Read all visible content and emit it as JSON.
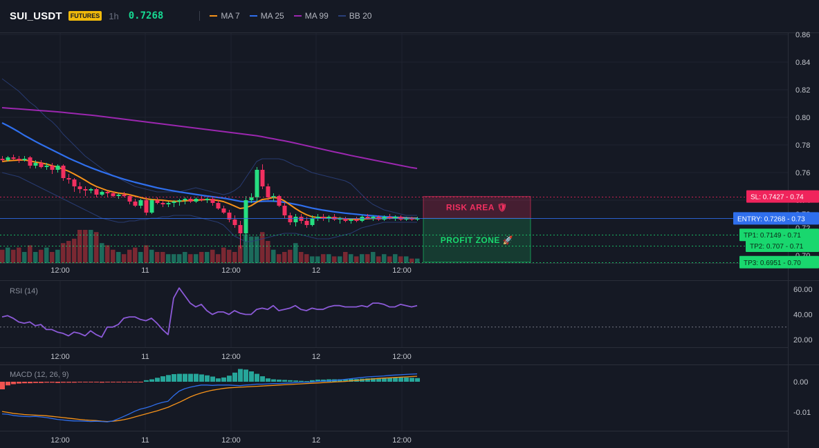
{
  "header": {
    "symbol": "SUI_USDT",
    "badge": "FUTURES",
    "timeframe": "1h",
    "price": "0.7268",
    "legend": [
      {
        "label": "MA 7",
        "color": "#f7931a"
      },
      {
        "label": "MA 25",
        "color": "#2f6fed"
      },
      {
        "label": "MA 99",
        "color": "#9c27b0"
      },
      {
        "label": "BB 20",
        "color": "#2a3f7a"
      }
    ]
  },
  "colors": {
    "up": "#26de81",
    "down": "#f23060",
    "vol_up": "#1c6b5c",
    "vol_down": "#7a2832",
    "ma7": "#f7931a",
    "ma25": "#2f6fed",
    "ma99": "#9c27b0",
    "bb": "#2a3f7a",
    "sl": "#f0245c",
    "entry": "#2f6fed",
    "tp": "#19d76e",
    "rsi": "#8c5ad8",
    "macd_line": "#2f6fed",
    "signal_line": "#f7931a",
    "hist_up": "#26a69a",
    "hist_down": "#ef5350"
  },
  "price_axis": {
    "ticks": [
      "0.86",
      "0.84",
      "0.82",
      "0.80",
      "0.78",
      "0.76",
      "0.74",
      "0.73",
      "0.72",
      "0.71",
      "0.70"
    ],
    "ylim": [
      0.693,
      0.864
    ]
  },
  "time_axis": [
    "12:00",
    "11",
    "12:00",
    "12",
    "12:00"
  ],
  "levels": {
    "sl": {
      "label": "SL: 0.7427",
      "value": 0.7427,
      "tick": "0.74"
    },
    "entry": {
      "label": "ENTRY: 0.7268",
      "value": 0.7268,
      "tick": "0.73"
    },
    "tp1": {
      "label": "TP1: 0.7149",
      "value": 0.7149,
      "tick": "0.71"
    },
    "tp2": {
      "label": "TP2: 0.707",
      "value": 0.707,
      "tick": "0.71"
    },
    "tp3": {
      "label": "TP3: 0.6951",
      "value": 0.6951,
      "tick": "0.70"
    }
  },
  "zones": {
    "risk": "RISK AREA 🛡",
    "profit": "PROFIT ZONE 🚀"
  },
  "rsi": {
    "title": "RSI (14)",
    "ticks": [
      "60.00",
      "40.00",
      "20.00"
    ],
    "values": [
      38,
      39,
      37,
      34,
      33,
      34,
      31,
      32,
      28,
      28,
      26,
      25,
      23,
      26,
      25,
      23,
      27,
      24,
      22,
      30,
      30,
      32,
      37,
      38,
      38,
      36,
      35,
      37,
      33,
      28,
      24,
      53,
      61,
      55,
      49,
      46,
      48,
      43,
      40,
      42,
      42,
      40,
      43,
      41,
      40,
      40,
      44,
      45,
      44,
      47,
      43,
      44,
      45,
      47,
      44,
      43,
      45,
      44,
      44,
      46,
      47,
      47,
      46,
      46,
      46,
      47,
      46,
      49,
      49,
      48,
      46,
      46,
      48,
      47,
      46,
      47
    ]
  },
  "macd": {
    "title": "MACD (12, 26, 9)",
    "ticks": [
      "0.00",
      "-0.01"
    ],
    "hist": [
      -0.0025,
      -0.0012,
      -0.0008,
      -0.0006,
      -0.0005,
      -0.0005,
      -0.0004,
      -0.0004,
      -0.0003,
      -0.0003,
      -0.0004,
      -0.0003,
      -0.0003,
      -0.0003,
      -0.0002,
      -0.0002,
      -0.0002,
      -0.0002,
      -0.0003,
      -0.0002,
      -0.0002,
      -0.0001,
      -0.0001,
      -0.0002,
      -0.0002,
      -0.0002,
      0.0005,
      0.0008,
      0.0013,
      0.0018,
      0.0022,
      0.0025,
      0.0026,
      0.0026,
      0.0026,
      0.0026,
      0.0024,
      0.0021,
      0.0017,
      0.0011,
      0.0014,
      0.002,
      0.003,
      0.0042,
      0.004,
      0.0034,
      0.0026,
      0.0018,
      0.0011,
      0.0008,
      0.0007,
      0.0006,
      0.0005,
      0.0004,
      0.0003,
      0.0002,
      0.0005,
      0.0007,
      0.0007,
      0.0008,
      0.0008,
      0.0008,
      0.0008,
      0.0009,
      0.0009,
      0.001,
      0.0011,
      0.0012,
      0.0012,
      0.0012,
      0.0013,
      0.0014,
      0.0014,
      0.0014,
      0.0013,
      0.0012
    ],
    "macd_line": [
      -0.0106,
      -0.0107,
      -0.0111,
      -0.0113,
      -0.0114,
      -0.0115,
      -0.0114,
      -0.0116,
      -0.0118,
      -0.0121,
      -0.0124,
      -0.0126,
      -0.0128,
      -0.0129,
      -0.0129,
      -0.013,
      -0.0131,
      -0.013,
      -0.0131,
      -0.0132,
      -0.0129,
      -0.0122,
      -0.0114,
      -0.0106,
      -0.0097,
      -0.009,
      -0.0086,
      -0.008,
      -0.0073,
      -0.0068,
      -0.0064,
      -0.0046,
      -0.0031,
      -0.0023,
      -0.0018,
      -0.0014,
      -0.0011,
      -0.0011,
      -0.0012,
      -0.0011,
      -0.0011,
      -0.0011,
      -0.0012,
      -0.0013,
      -0.0011,
      -0.001,
      -0.0008,
      -0.0008,
      -0.0007,
      -0.0006,
      -0.0006,
      -0.0005,
      -0.0004,
      -0.0003,
      -0.0002,
      -0.0002,
      -0.0001,
      0.0001,
      0.0002,
      0.0003,
      0.0004,
      0.0006,
      0.0008,
      0.001,
      0.0012,
      0.0014,
      0.0016,
      0.0017,
      0.0018,
      0.0019,
      0.0021,
      0.0022,
      0.0023,
      0.0024,
      0.0025,
      0.0026
    ],
    "signal_line": [
      -0.0098,
      -0.0101,
      -0.0104,
      -0.0106,
      -0.0108,
      -0.0109,
      -0.011,
      -0.0111,
      -0.0112,
      -0.0114,
      -0.0116,
      -0.0118,
      -0.012,
      -0.0122,
      -0.0124,
      -0.0126,
      -0.0127,
      -0.0128,
      -0.013,
      -0.0131,
      -0.013,
      -0.0128,
      -0.0125,
      -0.0121,
      -0.0116,
      -0.0111,
      -0.0106,
      -0.0101,
      -0.0096,
      -0.009,
      -0.0084,
      -0.0076,
      -0.0068,
      -0.0059,
      -0.005,
      -0.0043,
      -0.0037,
      -0.0032,
      -0.0028,
      -0.0025,
      -0.0022,
      -0.002,
      -0.0019,
      -0.0018,
      -0.0017,
      -0.0016,
      -0.0015,
      -0.0014,
      -0.0013,
      -0.0012,
      -0.0011,
      -0.001,
      -0.0009,
      -0.0008,
      -0.0007,
      -0.0006,
      -0.0005,
      -0.0004,
      -0.0003,
      -0.0002,
      -0.0001,
      0.0,
      0.0001,
      0.0003,
      0.0004,
      0.0006,
      0.0008,
      0.0009,
      0.0011,
      0.0012,
      0.0013,
      0.0014,
      0.0015,
      0.0016,
      0.0017,
      0.0018
    ]
  },
  "chart_data": {
    "type": "candlestick",
    "title": "SUI_USDT",
    "candles": [
      {
        "o": 0.77,
        "h": 0.772,
        "l": 0.768,
        "c": 0.769
      },
      {
        "o": 0.769,
        "h": 0.772,
        "l": 0.768,
        "c": 0.771
      },
      {
        "o": 0.771,
        "h": 0.773,
        "l": 0.769,
        "c": 0.77
      },
      {
        "o": 0.77,
        "h": 0.772,
        "l": 0.767,
        "c": 0.769
      },
      {
        "o": 0.769,
        "h": 0.772,
        "l": 0.768,
        "c": 0.77
      },
      {
        "o": 0.771,
        "h": 0.772,
        "l": 0.763,
        "c": 0.765
      },
      {
        "o": 0.765,
        "h": 0.769,
        "l": 0.763,
        "c": 0.767
      },
      {
        "o": 0.767,
        "h": 0.769,
        "l": 0.763,
        "c": 0.764
      },
      {
        "o": 0.764,
        "h": 0.767,
        "l": 0.762,
        "c": 0.765
      },
      {
        "o": 0.765,
        "h": 0.767,
        "l": 0.759,
        "c": 0.762
      },
      {
        "o": 0.762,
        "h": 0.766,
        "l": 0.76,
        "c": 0.765
      },
      {
        "o": 0.765,
        "h": 0.766,
        "l": 0.754,
        "c": 0.756
      },
      {
        "o": 0.756,
        "h": 0.759,
        "l": 0.752,
        "c": 0.755
      },
      {
        "o": 0.755,
        "h": 0.756,
        "l": 0.746,
        "c": 0.75
      },
      {
        "o": 0.75,
        "h": 0.753,
        "l": 0.745,
        "c": 0.748
      },
      {
        "o": 0.748,
        "h": 0.75,
        "l": 0.743,
        "c": 0.747
      },
      {
        "o": 0.747,
        "h": 0.749,
        "l": 0.745,
        "c": 0.748
      },
      {
        "o": 0.748,
        "h": 0.749,
        "l": 0.742,
        "c": 0.744
      },
      {
        "o": 0.744,
        "h": 0.747,
        "l": 0.743,
        "c": 0.746
      },
      {
        "o": 0.746,
        "h": 0.747,
        "l": 0.742,
        "c": 0.745
      },
      {
        "o": 0.745,
        "h": 0.746,
        "l": 0.742,
        "c": 0.743
      },
      {
        "o": 0.743,
        "h": 0.745,
        "l": 0.741,
        "c": 0.744
      },
      {
        "o": 0.744,
        "h": 0.746,
        "l": 0.742,
        "c": 0.743
      },
      {
        "o": 0.743,
        "h": 0.744,
        "l": 0.737,
        "c": 0.739
      },
      {
        "o": 0.739,
        "h": 0.741,
        "l": 0.735,
        "c": 0.736
      },
      {
        "o": 0.736,
        "h": 0.741,
        "l": 0.734,
        "c": 0.74
      },
      {
        "o": 0.74,
        "h": 0.742,
        "l": 0.729,
        "c": 0.731
      },
      {
        "o": 0.731,
        "h": 0.741,
        "l": 0.73,
        "c": 0.74
      },
      {
        "o": 0.74,
        "h": 0.742,
        "l": 0.737,
        "c": 0.738
      },
      {
        "o": 0.738,
        "h": 0.74,
        "l": 0.735,
        "c": 0.737
      },
      {
        "o": 0.737,
        "h": 0.739,
        "l": 0.735,
        "c": 0.738
      },
      {
        "o": 0.738,
        "h": 0.74,
        "l": 0.735,
        "c": 0.739
      },
      {
        "o": 0.739,
        "h": 0.741,
        "l": 0.736,
        "c": 0.74
      },
      {
        "o": 0.74,
        "h": 0.742,
        "l": 0.737,
        "c": 0.741
      },
      {
        "o": 0.741,
        "h": 0.742,
        "l": 0.738,
        "c": 0.739
      },
      {
        "o": 0.739,
        "h": 0.742,
        "l": 0.738,
        "c": 0.741
      },
      {
        "o": 0.741,
        "h": 0.743,
        "l": 0.739,
        "c": 0.74
      },
      {
        "o": 0.74,
        "h": 0.742,
        "l": 0.738,
        "c": 0.741
      },
      {
        "o": 0.741,
        "h": 0.742,
        "l": 0.736,
        "c": 0.738
      },
      {
        "o": 0.738,
        "h": 0.74,
        "l": 0.733,
        "c": 0.734
      },
      {
        "o": 0.734,
        "h": 0.736,
        "l": 0.73,
        "c": 0.731
      },
      {
        "o": 0.731,
        "h": 0.733,
        "l": 0.724,
        "c": 0.726
      },
      {
        "o": 0.726,
        "h": 0.729,
        "l": 0.72,
        "c": 0.722
      },
      {
        "o": 0.722,
        "h": 0.725,
        "l": 0.705,
        "c": 0.716
      },
      {
        "o": 0.716,
        "h": 0.743,
        "l": 0.71,
        "c": 0.74
      },
      {
        "o": 0.74,
        "h": 0.745,
        "l": 0.738,
        "c": 0.742
      },
      {
        "o": 0.742,
        "h": 0.764,
        "l": 0.739,
        "c": 0.762
      },
      {
        "o": 0.762,
        "h": 0.766,
        "l": 0.748,
        "c": 0.75
      },
      {
        "o": 0.75,
        "h": 0.752,
        "l": 0.74,
        "c": 0.742
      },
      {
        "o": 0.742,
        "h": 0.745,
        "l": 0.739,
        "c": 0.743
      },
      {
        "o": 0.743,
        "h": 0.744,
        "l": 0.735,
        "c": 0.736
      },
      {
        "o": 0.736,
        "h": 0.738,
        "l": 0.727,
        "c": 0.729
      },
      {
        "o": 0.729,
        "h": 0.731,
        "l": 0.722,
        "c": 0.724
      },
      {
        "o": 0.724,
        "h": 0.73,
        "l": 0.721,
        "c": 0.728
      },
      {
        "o": 0.728,
        "h": 0.73,
        "l": 0.723,
        "c": 0.725
      },
      {
        "o": 0.725,
        "h": 0.728,
        "l": 0.72,
        "c": 0.722
      },
      {
        "o": 0.722,
        "h": 0.729,
        "l": 0.721,
        "c": 0.727
      },
      {
        "o": 0.727,
        "h": 0.73,
        "l": 0.725,
        "c": 0.728
      },
      {
        "o": 0.728,
        "h": 0.73,
        "l": 0.725,
        "c": 0.727
      },
      {
        "o": 0.727,
        "h": 0.729,
        "l": 0.724,
        "c": 0.728
      },
      {
        "o": 0.728,
        "h": 0.73,
        "l": 0.725,
        "c": 0.726
      },
      {
        "o": 0.726,
        "h": 0.728,
        "l": 0.723,
        "c": 0.727
      },
      {
        "o": 0.727,
        "h": 0.728,
        "l": 0.724,
        "c": 0.725
      },
      {
        "o": 0.725,
        "h": 0.727,
        "l": 0.723,
        "c": 0.726
      },
      {
        "o": 0.726,
        "h": 0.728,
        "l": 0.724,
        "c": 0.725
      },
      {
        "o": 0.725,
        "h": 0.729,
        "l": 0.724,
        "c": 0.728
      },
      {
        "o": 0.728,
        "h": 0.73,
        "l": 0.726,
        "c": 0.727
      },
      {
        "o": 0.727,
        "h": 0.729,
        "l": 0.725,
        "c": 0.728
      },
      {
        "o": 0.728,
        "h": 0.729,
        "l": 0.725,
        "c": 0.726
      },
      {
        "o": 0.726,
        "h": 0.729,
        "l": 0.725,
        "c": 0.728
      },
      {
        "o": 0.728,
        "h": 0.73,
        "l": 0.726,
        "c": 0.727
      },
      {
        "o": 0.727,
        "h": 0.729,
        "l": 0.725,
        "c": 0.728
      },
      {
        "o": 0.728,
        "h": 0.729,
        "l": 0.725,
        "c": 0.726
      },
      {
        "o": 0.726,
        "h": 0.728,
        "l": 0.725,
        "c": 0.727
      },
      {
        "o": 0.727,
        "h": 0.728,
        "l": 0.725,
        "c": 0.726
      },
      {
        "o": 0.726,
        "h": 0.728,
        "l": 0.725,
        "c": 0.7268
      }
    ],
    "volume": [
      6,
      7,
      6,
      7,
      5,
      8,
      5,
      6,
      7,
      5,
      6,
      9,
      10,
      11,
      15,
      15,
      15,
      14,
      9,
      8,
      6,
      5,
      4,
      6,
      7,
      5,
      8,
      6,
      5,
      5,
      4,
      4,
      4,
      5,
      4,
      4,
      5,
      5,
      6,
      4,
      7,
      6,
      5,
      8,
      13,
      12,
      12,
      14,
      10,
      6,
      4,
      5,
      6,
      9,
      5,
      4,
      3,
      3,
      4,
      4,
      3,
      3,
      5,
      4,
      3,
      4,
      4,
      5,
      3,
      4,
      3,
      4,
      3,
      3,
      2,
      2
    ],
    "ma7": [
      0.768,
      0.7685,
      0.7688,
      0.769,
      0.7692,
      0.7685,
      0.7676,
      0.767,
      0.7662,
      0.765,
      0.764,
      0.7625,
      0.761,
      0.759,
      0.7568,
      0.7545,
      0.752,
      0.75,
      0.7485,
      0.747,
      0.746,
      0.7452,
      0.7447,
      0.744,
      0.743,
      0.742,
      0.741,
      0.7405,
      0.7402,
      0.74,
      0.7395,
      0.7392,
      0.7392,
      0.7395,
      0.7398,
      0.74,
      0.7402,
      0.7405,
      0.7403,
      0.7398,
      0.739,
      0.7375,
      0.7358,
      0.734,
      0.7345,
      0.736,
      0.7385,
      0.7405,
      0.741,
      0.742,
      0.7415,
      0.7395,
      0.7368,
      0.734,
      0.7315,
      0.7295,
      0.728,
      0.7275,
      0.7274,
      0.7272,
      0.727,
      0.7268,
      0.7265,
      0.7263,
      0.7262,
      0.7264,
      0.7266,
      0.7268,
      0.7268,
      0.7269,
      0.727,
      0.7271,
      0.727,
      0.7269,
      0.7268,
      0.7268
    ],
    "ma25": [
      0.796,
      0.794,
      0.7918,
      0.7895,
      0.787,
      0.7848,
      0.7826,
      0.7805,
      0.7785,
      0.7765,
      0.7745,
      0.7725,
      0.7705,
      0.7687,
      0.767,
      0.7652,
      0.7636,
      0.7621,
      0.7606,
      0.7592,
      0.7578,
      0.7565,
      0.7552,
      0.7541,
      0.753,
      0.752,
      0.751,
      0.75,
      0.749,
      0.7482,
      0.7474,
      0.7467,
      0.746,
      0.7454,
      0.7448,
      0.7442,
      0.7436,
      0.743,
      0.7425,
      0.742,
      0.7415,
      0.7408,
      0.74,
      0.7392,
      0.7388,
      0.7388,
      0.739,
      0.7392,
      0.7393,
      0.7393,
      0.739,
      0.7385,
      0.7378,
      0.737,
      0.7362,
      0.7352,
      0.7343,
      0.7335,
      0.7328,
      0.7322,
      0.7316,
      0.7311,
      0.7306,
      0.7302,
      0.7298,
      0.7294,
      0.729,
      0.7287,
      0.7284,
      0.7281,
      0.7279,
      0.7277,
      0.7275,
      0.7273,
      0.7271,
      0.727
    ],
    "ma99": [
      0.807,
      0.8067,
      0.8064,
      0.8061,
      0.8058,
      0.8055,
      0.8052,
      0.8049,
      0.8046,
      0.8043,
      0.804,
      0.8036,
      0.8032,
      0.8028,
      0.8024,
      0.802,
      0.8016,
      0.8012,
      0.8007,
      0.8002,
      0.7997,
      0.7992,
      0.7987,
      0.7982,
      0.7977,
      0.7972,
      0.7967,
      0.7962,
      0.7957,
      0.7952,
      0.7947,
      0.7942,
      0.7937,
      0.7932,
      0.7927,
      0.7922,
      0.7917,
      0.7912,
      0.7907,
      0.7902,
      0.7897,
      0.7892,
      0.7887,
      0.7882,
      0.7877,
      0.7872,
      0.7867,
      0.786,
      0.7852,
      0.7845,
      0.7837,
      0.783,
      0.7822,
      0.7813,
      0.7804,
      0.7795,
      0.7786,
      0.7777,
      0.7768,
      0.7759,
      0.775,
      0.7742,
      0.7733,
      0.7724,
      0.7716,
      0.7708,
      0.77,
      0.7692,
      0.7684,
      0.7676,
      0.7668,
      0.766,
      0.7652,
      0.7644,
      0.7636,
      0.763
    ],
    "bb_upper": [
      0.828,
      0.825,
      0.822,
      0.819,
      0.815,
      0.811,
      0.808,
      0.804,
      0.8,
      0.797,
      0.793,
      0.788,
      0.784,
      0.78,
      0.776,
      0.772,
      0.769,
      0.766,
      0.763,
      0.76,
      0.758,
      0.756,
      0.754,
      0.752,
      0.75,
      0.749,
      0.748,
      0.747,
      0.746,
      0.746,
      0.746,
      0.746,
      0.746,
      0.747,
      0.748,
      0.749,
      0.748,
      0.747,
      0.746,
      0.745,
      0.744,
      0.745,
      0.747,
      0.75,
      0.756,
      0.762,
      0.768,
      0.77,
      0.77,
      0.77,
      0.77,
      0.769,
      0.767,
      0.765,
      0.764,
      0.762,
      0.76,
      0.759,
      0.758,
      0.757,
      0.756,
      0.755,
      0.754,
      0.752,
      0.748,
      0.744,
      0.74,
      0.737,
      0.735,
      0.733,
      0.732,
      0.731,
      0.73,
      0.729,
      0.729,
      0.729
    ],
    "bb_lower": [
      0.76,
      0.759,
      0.758,
      0.757,
      0.755,
      0.753,
      0.751,
      0.749,
      0.747,
      0.745,
      0.743,
      0.741,
      0.739,
      0.737,
      0.735,
      0.733,
      0.731,
      0.729,
      0.727,
      0.726,
      0.725,
      0.724,
      0.724,
      0.725,
      0.725,
      0.726,
      0.726,
      0.727,
      0.727,
      0.728,
      0.728,
      0.729,
      0.729,
      0.729,
      0.729,
      0.728,
      0.727,
      0.726,
      0.725,
      0.724,
      0.722,
      0.718,
      0.714,
      0.712,
      0.71,
      0.71,
      0.711,
      0.712,
      0.713,
      0.714,
      0.715,
      0.716,
      0.716,
      0.716,
      0.715,
      0.714,
      0.713,
      0.712,
      0.712,
      0.712,
      0.713,
      0.714,
      0.715,
      0.716,
      0.718,
      0.72,
      0.721,
      0.722,
      0.723,
      0.724,
      0.724,
      0.724,
      0.724,
      0.724,
      0.724,
      0.724
    ]
  }
}
